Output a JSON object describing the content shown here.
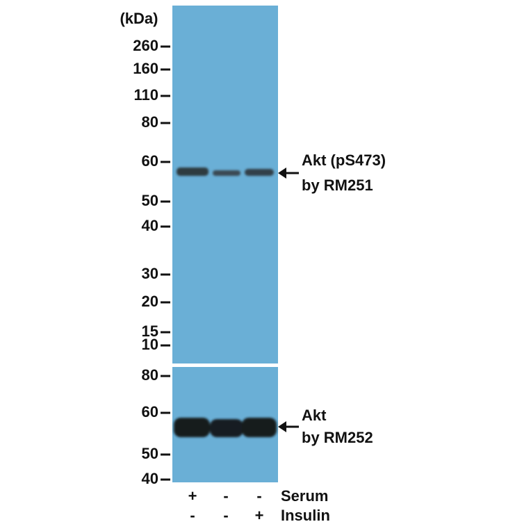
{
  "unit_label": "(kDa)",
  "top_panel": {
    "markers": [
      "260",
      "160",
      "110",
      "80",
      "60",
      "50",
      "40",
      "30",
      "20",
      "15",
      "10"
    ],
    "band_label": [
      "Akt (pS473)",
      "by RM251"
    ]
  },
  "bottom_panel": {
    "markers": [
      "80",
      "60",
      "50",
      "40"
    ],
    "band_label": [
      "Akt",
      "by RM252"
    ]
  },
  "conditions": [
    {
      "name": "Serum",
      "lanes": [
        "+",
        "-",
        "-"
      ]
    },
    {
      "name": "Insulin",
      "lanes": [
        "-",
        "-",
        "+"
      ]
    }
  ]
}
